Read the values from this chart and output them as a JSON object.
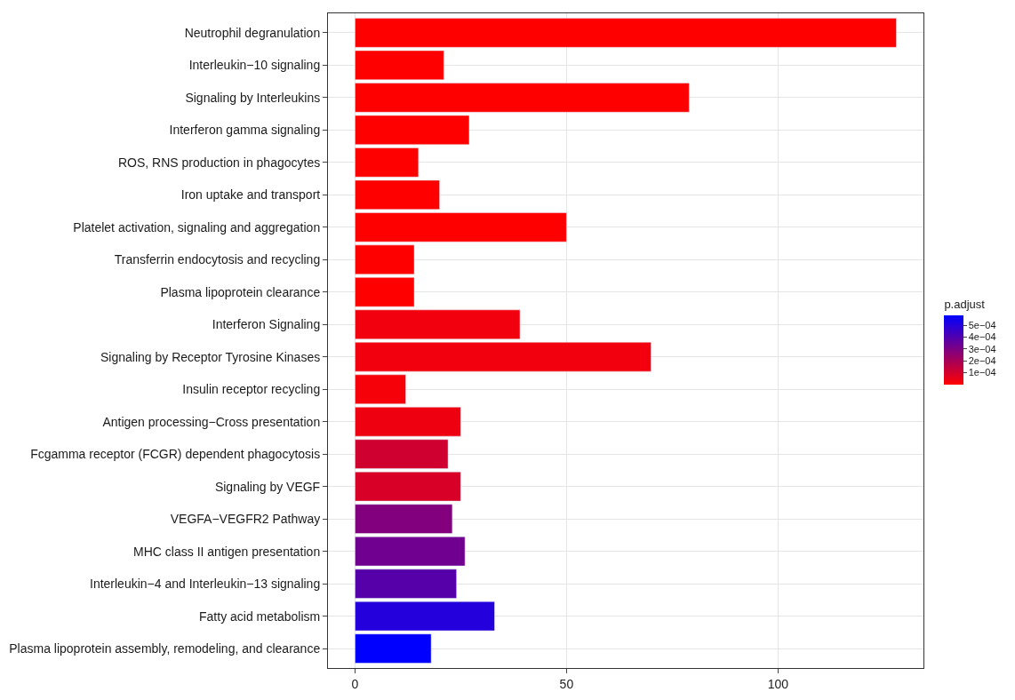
{
  "chart_data": {
    "type": "bar",
    "orientation": "horizontal",
    "categories": [
      "Neutrophil degranulation",
      "Interleukin−10 signaling",
      "Signaling by Interleukins",
      "Interferon gamma signaling",
      "ROS, RNS production in phagocytes",
      "Iron uptake and transport",
      "Platelet activation, signaling and aggregation",
      "Transferrin endocytosis and recycling",
      "Plasma lipoprotein clearance",
      "Interferon Signaling",
      "Signaling by Receptor Tyrosine Kinases",
      "Insulin receptor recycling",
      "Antigen processing−Cross presentation",
      "Fcgamma receptor (FCGR) dependent phagocytosis",
      "Signaling by VEGF",
      "VEGFA−VEGFR2 Pathway",
      "MHC class II antigen presentation",
      "Interleukin−4 and Interleukin−13 signaling",
      "Fatty acid metabolism",
      "Plasma lipoprotein assembly, remodeling, and clearance"
    ],
    "values": [
      128,
      21,
      79,
      27,
      15,
      20,
      50,
      14,
      14,
      39,
      70,
      12,
      25,
      22,
      25,
      23,
      26,
      24,
      33,
      18
    ],
    "cvalues": [
      0.0,
      0.0,
      0.0,
      0.0,
      0.0,
      0.0,
      0.0,
      0.0,
      0.0,
      3e-05,
      3e-05,
      2e-05,
      4e-05,
      0.00011,
      9e-05,
      0.00029,
      0.00033,
      0.00039,
      0.00051,
      0.00059
    ],
    "clabel": "p.adjust",
    "clim": [
      0,
      0.00059
    ],
    "cticks": [
      {
        "value": 0.0001,
        "label": "1e−04"
      },
      {
        "value": 0.0002,
        "label": "2e−04"
      },
      {
        "value": 0.0003,
        "label": "3e−04"
      },
      {
        "value": 0.0004,
        "label": "4e−04"
      },
      {
        "value": 0.0005,
        "label": "5e−04"
      }
    ],
    "xlim": [
      -6.4,
      134.4
    ],
    "xticks": [
      0,
      50,
      100
    ],
    "grid": true,
    "legend": false
  }
}
